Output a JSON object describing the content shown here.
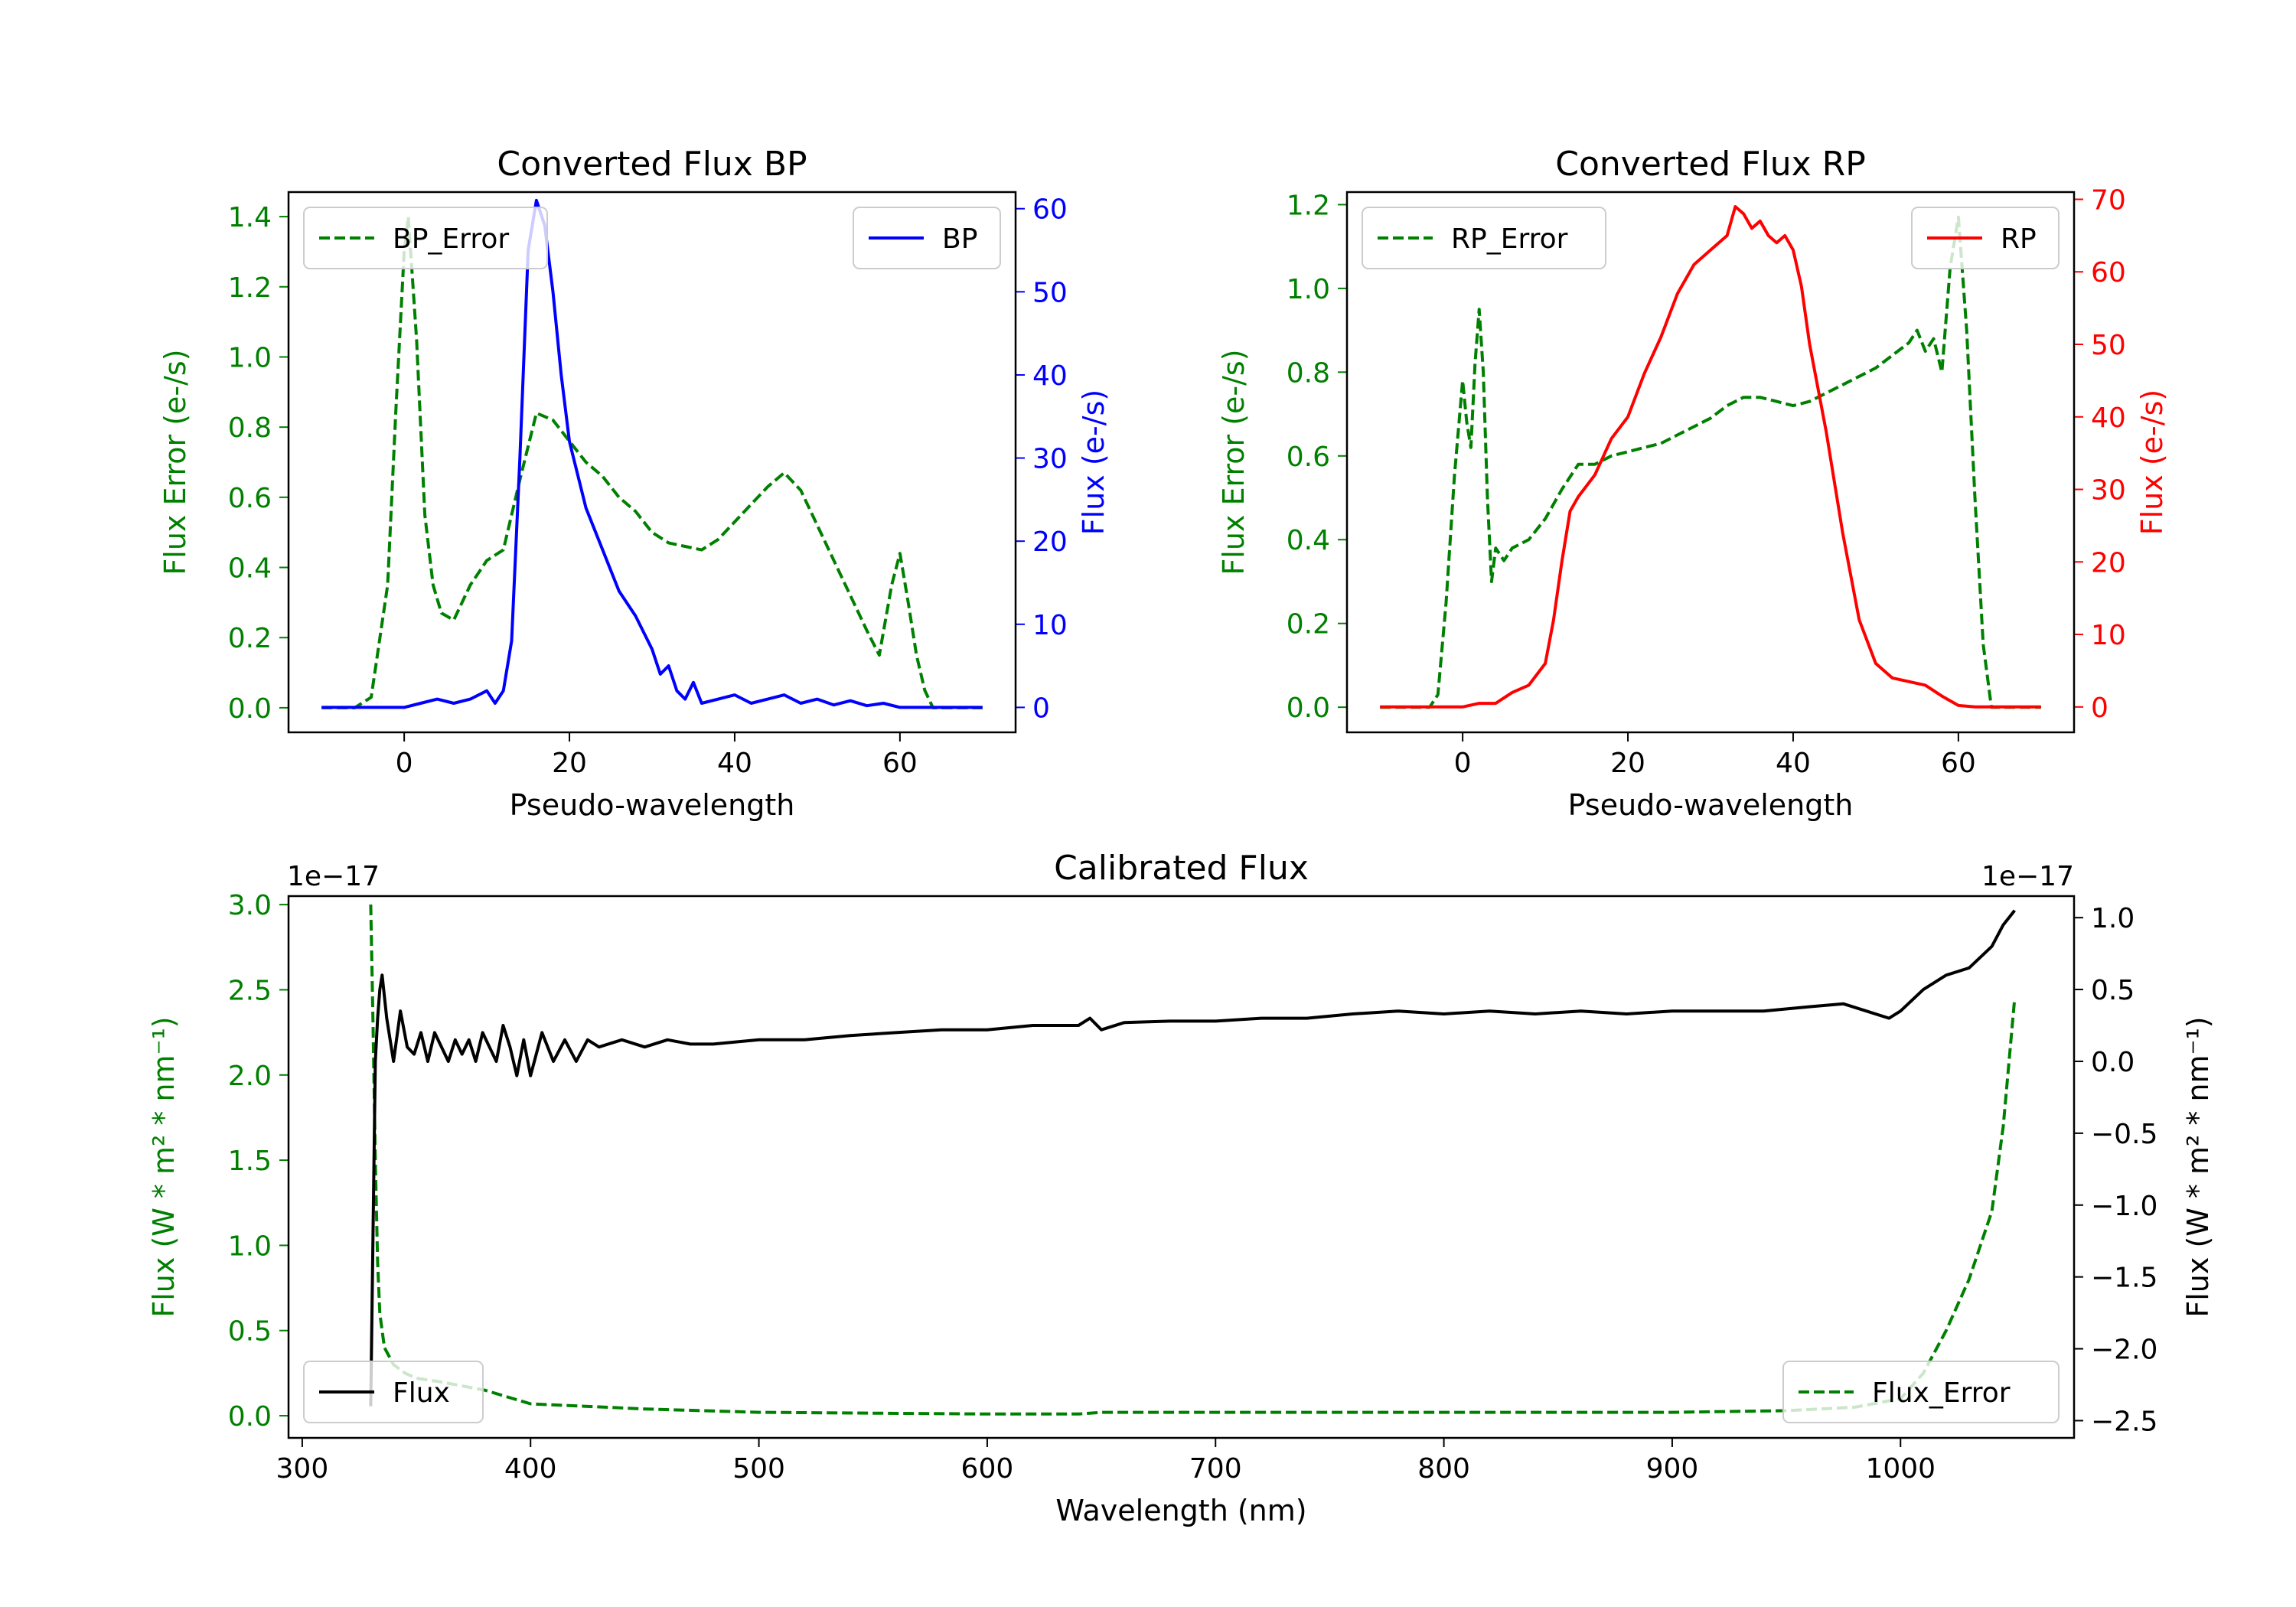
{
  "chart_data": [
    {
      "id": "bp",
      "type": "line",
      "title": "Converted Flux BP",
      "xlabel": "Pseudo-wavelength",
      "xlim": [
        -14,
        74
      ],
      "xticks": [
        0,
        20,
        40,
        60
      ],
      "left_axis": {
        "label": "Flux Error (e-/s)",
        "color": "#008000",
        "ylim": [
          -0.07,
          1.47
        ],
        "ticks": [
          0.0,
          0.2,
          0.4,
          0.6,
          0.8,
          1.0,
          1.2,
          1.4
        ]
      },
      "right_axis": {
        "label": "Flux (e-/s)",
        "color": "#0000ff",
        "ylim": [
          -3,
          62
        ],
        "ticks": [
          0,
          10,
          20,
          30,
          40,
          50,
          60
        ]
      },
      "legends": [
        {
          "position": "upper-left",
          "entries": [
            {
              "name": "BP_Error",
              "color": "#008000",
              "style": "dashed"
            }
          ]
        },
        {
          "position": "upper-right",
          "entries": [
            {
              "name": "BP",
              "color": "#0000ff",
              "style": "solid"
            }
          ]
        }
      ],
      "series": [
        {
          "name": "BP_Error",
          "axis": "left",
          "color": "#008000",
          "style": "dashed",
          "x": [
            -10,
            -6,
            -4,
            -2,
            -1,
            0,
            0.5,
            1.5,
            2.5,
            3.5,
            4.5,
            6,
            8,
            10,
            12,
            14,
            16,
            18,
            20,
            22,
            24,
            26,
            28,
            30,
            32,
            34,
            36,
            38,
            40,
            42,
            44,
            46,
            48,
            50,
            52,
            54,
            56,
            57.5,
            59,
            60,
            61,
            62,
            63,
            64,
            66,
            70
          ],
          "y": [
            0.0,
            0.0,
            0.03,
            0.35,
            0.85,
            1.3,
            1.4,
            1.05,
            0.55,
            0.35,
            0.27,
            0.25,
            0.35,
            0.42,
            0.45,
            0.65,
            0.84,
            0.82,
            0.76,
            0.7,
            0.66,
            0.6,
            0.56,
            0.5,
            0.47,
            0.46,
            0.45,
            0.48,
            0.53,
            0.58,
            0.63,
            0.67,
            0.62,
            0.52,
            0.42,
            0.32,
            0.22,
            0.15,
            0.35,
            0.44,
            0.3,
            0.15,
            0.05,
            0.0,
            0.0,
            0.0
          ]
        },
        {
          "name": "BP",
          "axis": "right",
          "color": "#0000ff",
          "style": "solid",
          "x": [
            -10,
            -4,
            -2,
            0,
            2,
            4,
            6,
            8,
            10,
            11,
            12,
            13,
            14,
            15,
            16,
            17,
            18,
            19,
            20,
            22,
            24,
            26,
            28,
            30,
            31,
            32,
            33,
            34,
            35,
            36,
            38,
            40,
            42,
            44,
            46,
            48,
            50,
            52,
            54,
            56,
            58,
            60,
            62,
            64,
            66,
            70
          ],
          "y": [
            0,
            0,
            0,
            0,
            0.5,
            1,
            0.5,
            1,
            2,
            0.5,
            2,
            8,
            30,
            55,
            61,
            58,
            50,
            40,
            32,
            24,
            19,
            14,
            11,
            7,
            4,
            5,
            2,
            1,
            3,
            0.5,
            1,
            1.5,
            0.5,
            1,
            1.5,
            0.5,
            1,
            0.3,
            0.8,
            0.2,
            0.5,
            0,
            0,
            0,
            0,
            0
          ]
        }
      ]
    },
    {
      "id": "rp",
      "type": "line",
      "title": "Converted Flux RP",
      "xlabel": "Pseudo-wavelength",
      "xlim": [
        -14,
        74
      ],
      "xticks": [
        0,
        20,
        40,
        60
      ],
      "left_axis": {
        "label": "Flux Error (e-/s)",
        "color": "#008000",
        "ylim": [
          -0.06,
          1.23
        ],
        "ticks": [
          0.0,
          0.2,
          0.4,
          0.6,
          0.8,
          1.0,
          1.2
        ]
      },
      "right_axis": {
        "label": "Flux (e-/s)",
        "color": "#ff0000",
        "ylim": [
          -3.5,
          71
        ],
        "ticks": [
          0,
          10,
          20,
          30,
          40,
          50,
          60,
          70
        ]
      },
      "legends": [
        {
          "position": "upper-left",
          "entries": [
            {
              "name": "RP_Error",
              "color": "#008000",
              "style": "dashed"
            }
          ]
        },
        {
          "position": "upper-right",
          "entries": [
            {
              "name": "RP",
              "color": "#ff0000",
              "style": "solid"
            }
          ]
        }
      ],
      "series": [
        {
          "name": "RP_Error",
          "axis": "left",
          "color": "#008000",
          "style": "dashed",
          "x": [
            -10,
            -4,
            -3,
            -2,
            -1,
            0,
            0.5,
            1,
            1.5,
            2,
            2.5,
            3,
            3.5,
            4,
            5,
            6,
            8,
            10,
            12,
            14,
            16,
            18,
            20,
            22,
            24,
            26,
            28,
            30,
            32,
            34,
            36,
            38,
            40,
            42,
            44,
            46,
            48,
            50,
            52,
            54,
            55,
            56,
            57,
            58,
            59,
            60,
            61,
            62,
            63,
            64,
            66,
            70
          ],
          "y": [
            0.0,
            0.0,
            0.03,
            0.25,
            0.55,
            0.78,
            0.68,
            0.62,
            0.82,
            0.95,
            0.8,
            0.5,
            0.3,
            0.38,
            0.35,
            0.38,
            0.4,
            0.45,
            0.52,
            0.58,
            0.58,
            0.6,
            0.61,
            0.62,
            0.63,
            0.65,
            0.67,
            0.69,
            0.72,
            0.74,
            0.74,
            0.73,
            0.72,
            0.73,
            0.75,
            0.77,
            0.79,
            0.81,
            0.84,
            0.87,
            0.9,
            0.85,
            0.88,
            0.8,
            1.05,
            1.17,
            0.9,
            0.5,
            0.15,
            0.0,
            0.0,
            0.0
          ]
        },
        {
          "name": "RP",
          "axis": "right",
          "color": "#ff0000",
          "style": "solid",
          "x": [
            -10,
            -2,
            0,
            2,
            4,
            6,
            8,
            10,
            11,
            12,
            13,
            14,
            16,
            18,
            20,
            22,
            24,
            26,
            28,
            30,
            32,
            33,
            34,
            35,
            36,
            37,
            38,
            39,
            40,
            41,
            42,
            44,
            46,
            48,
            50,
            52,
            54,
            56,
            58,
            60,
            62,
            66,
            70
          ],
          "y": [
            0,
            0,
            0,
            0.5,
            0.5,
            2,
            3,
            6,
            12,
            20,
            27,
            29,
            32,
            37,
            40,
            46,
            51,
            57,
            61,
            63,
            65,
            69,
            68,
            66,
            67,
            65,
            64,
            65,
            63,
            58,
            50,
            38,
            24,
            12,
            6,
            4,
            3.5,
            3,
            1.5,
            0.2,
            0,
            0,
            0
          ]
        }
      ]
    },
    {
      "id": "calibrated",
      "type": "line",
      "title": "Calibrated Flux",
      "xlabel": "Wavelength (nm)",
      "xlim": [
        294,
        1076
      ],
      "xticks": [
        300,
        400,
        500,
        600,
        700,
        800,
        900,
        1000
      ],
      "left_axis": {
        "label": "Flux (W * m² * nm⁻¹)",
        "color": "#008000",
        "ylim": [
          -0.13,
          3.05
        ],
        "ticks": [
          0.0,
          0.5,
          1.0,
          1.5,
          2.0,
          2.5,
          3.0
        ],
        "offset_text": "1e−17"
      },
      "right_axis": {
        "label": "Flux (W * m² * nm⁻¹)",
        "color": "#000000",
        "ylim": [
          -2.62,
          1.15
        ],
        "ticks": [
          -2.5,
          -2.0,
          -1.5,
          -1.0,
          -0.5,
          0.0,
          0.5,
          1.0
        ],
        "offset_text": "1e−17"
      },
      "legends": [
        {
          "position": "lower-left",
          "entries": [
            {
              "name": "Flux",
              "color": "#000000",
              "style": "solid"
            }
          ]
        },
        {
          "position": "lower-right",
          "entries": [
            {
              "name": "Flux_Error",
              "color": "#008000",
              "style": "dashed"
            }
          ]
        }
      ],
      "series": [
        {
          "name": "Flux_Error",
          "axis": "left",
          "color": "#008000",
          "style": "dashed",
          "x": [
            330,
            331,
            332,
            333,
            334,
            336,
            340,
            345,
            350,
            360,
            380,
            400,
            450,
            500,
            600,
            640,
            650,
            700,
            800,
            900,
            950,
            980,
            1000,
            1010,
            1020,
            1030,
            1040,
            1045,
            1050
          ],
          "y": [
            3.0,
            2.3,
            1.5,
            0.9,
            0.6,
            0.4,
            0.3,
            0.25,
            0.22,
            0.2,
            0.15,
            0.07,
            0.04,
            0.02,
            0.01,
            0.01,
            0.02,
            0.02,
            0.02,
            0.02,
            0.03,
            0.05,
            0.1,
            0.25,
            0.5,
            0.8,
            1.2,
            1.7,
            2.45
          ]
        },
        {
          "name": "Flux",
          "axis": "right",
          "color": "#000000",
          "style": "solid",
          "x": [
            330,
            331,
            332,
            333,
            334,
            335,
            337,
            340,
            343,
            346,
            349,
            352,
            355,
            358,
            361,
            364,
            367,
            370,
            373,
            376,
            379,
            382,
            385,
            388,
            391,
            394,
            397,
            400,
            405,
            410,
            415,
            420,
            425,
            430,
            440,
            450,
            460,
            470,
            480,
            500,
            520,
            540,
            560,
            580,
            600,
            620,
            640,
            645,
            650,
            660,
            680,
            700,
            720,
            740,
            760,
            780,
            800,
            820,
            840,
            860,
            880,
            900,
            920,
            940,
            960,
            975,
            985,
            995,
            1000,
            1010,
            1020,
            1030,
            1040,
            1045,
            1050
          ],
          "y": [
            -2.4,
            -1.2,
            0.0,
            0.3,
            0.5,
            0.6,
            0.3,
            0.0,
            0.35,
            0.1,
            0.05,
            0.2,
            0.0,
            0.2,
            0.1,
            0.0,
            0.15,
            0.05,
            0.15,
            0.0,
            0.2,
            0.1,
            0.0,
            0.25,
            0.1,
            -0.1,
            0.15,
            -0.1,
            0.2,
            0.0,
            0.15,
            0.0,
            0.15,
            0.1,
            0.15,
            0.1,
            0.15,
            0.12,
            0.12,
            0.15,
            0.15,
            0.18,
            0.2,
            0.22,
            0.22,
            0.25,
            0.25,
            0.3,
            0.22,
            0.27,
            0.28,
            0.28,
            0.3,
            0.3,
            0.33,
            0.35,
            0.33,
            0.35,
            0.33,
            0.35,
            0.33,
            0.35,
            0.35,
            0.35,
            0.38,
            0.4,
            0.35,
            0.3,
            0.35,
            0.5,
            0.6,
            0.65,
            0.8,
            0.95,
            1.05
          ]
        }
      ]
    }
  ]
}
